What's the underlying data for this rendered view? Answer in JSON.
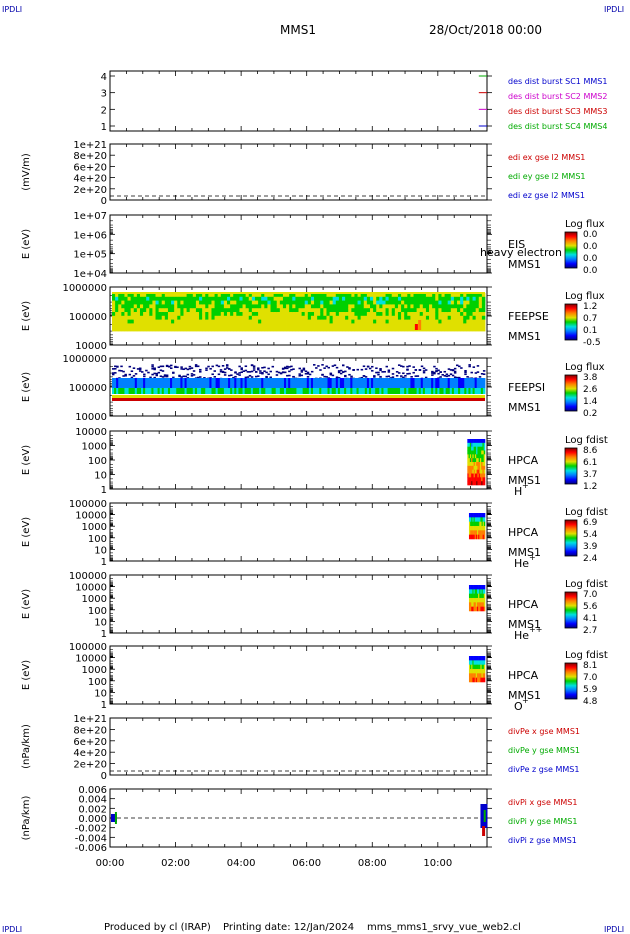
{
  "header": {
    "corner_tl": "IPDLI",
    "corner_tr": "IPDLI",
    "corner_bl": "IPDLI",
    "corner_br": "IPDLI",
    "title": "MMS1",
    "datetime": "28/Oct/2018 00:00"
  },
  "footer": {
    "produced_by": "Produced by cl (IRAP)",
    "printing_date": "Printing date: 12/Jan/2024",
    "filename": "mms_mms1_srvy_vue_web2.cl"
  },
  "colors": {
    "colorbar": [
      "#00007f",
      "#0000ff",
      "#0080ff",
      "#00e0e0",
      "#00d000",
      "#e0e000",
      "#ff8000",
      "#ff0000",
      "#7f0000"
    ]
  },
  "chart_data": {
    "type": "multi-panel-timeseries",
    "x_tick_labels": [
      "00:00",
      "02:00",
      "04:00",
      "06:00",
      "08:00",
      "10:00"
    ],
    "xlim_hours": [
      0,
      11.5
    ],
    "panels": [
      {
        "id": "burst",
        "type": "line",
        "y_tick_labels": [
          "4",
          "3",
          "2",
          "1"
        ],
        "ylim": [
          0.5,
          4.5
        ],
        "series": [
          {
            "name": "des dist burst SC1 MMS1",
            "color": "#0000cc",
            "y": 1,
            "start_hour": 11.25,
            "end_hour": 11.5
          },
          {
            "name": "des dist burst SC2 MMS2",
            "color": "#cc00cc",
            "y": 2,
            "start_hour": 11.25,
            "end_hour": 11.5
          },
          {
            "name": "des dist burst SC3 MMS3",
            "color": "#cc0000",
            "y": 3,
            "start_hour": 11.25,
            "end_hour": 11.5
          },
          {
            "name": "des dist burst SC4 MMS4",
            "color": "#00aa00",
            "y": 4,
            "start_hour": 11.25,
            "end_hour": 11.5
          }
        ]
      },
      {
        "id": "edi",
        "type": "line",
        "ylabel": "(mV/m)",
        "y_tick_labels": [
          "1e+21",
          "8e+20",
          "6e+20",
          "4e+20",
          "2e+20",
          "0"
        ],
        "ylim": [
          0,
          1e+21
        ],
        "zero_line": true,
        "series": [
          {
            "name": "edi ex gse l2 MMS1",
            "color": "#cc0000"
          },
          {
            "name": "edi ey gse l2 MMS1",
            "color": "#00aa00"
          },
          {
            "name": "edi ez gse l2 MMS1",
            "color": "#0000cc"
          }
        ]
      },
      {
        "id": "eis",
        "type": "heatmap",
        "ylabel": "E (eV)",
        "y_tick_labels": [
          "1e+07",
          "1e+06",
          "1e+05",
          "1e+04"
        ],
        "ylim": [
          10000.0,
          10000000.0
        ],
        "log_y": true,
        "instrument": "EIS",
        "spacecraft": "MMS1",
        "overlap_text": "heavy electron to",
        "colorbar_title": "Log flux",
        "colorbar_ticks": [
          "0.0",
          "0.0",
          "0.0",
          "0.0"
        ]
      },
      {
        "id": "feepse",
        "type": "heatmap",
        "ylabel": "E (eV)",
        "y_tick_labels": [
          "1000000",
          "100000",
          "10000"
        ],
        "ylim": [
          10000.0,
          1000000.0
        ],
        "log_y": true,
        "instrument": "FEEPSE",
        "spacecraft": "MMS1",
        "colorbar_title": "Log flux",
        "colorbar_ticks": [
          "1.2",
          "0.7",
          "0.1",
          "-0.5"
        ]
      },
      {
        "id": "feepsi",
        "type": "heatmap",
        "ylabel": "E (eV)",
        "y_tick_labels": [
          "1000000",
          "100000",
          "10000"
        ],
        "ylim": [
          10000.0,
          1000000.0
        ],
        "log_y": true,
        "instrument": "FEEPSI",
        "spacecraft": "MMS1",
        "colorbar_title": "Log flux",
        "colorbar_ticks": [
          "3.8",
          "2.6",
          "1.4",
          "0.2"
        ]
      },
      {
        "id": "hpca_h",
        "type": "heatmap",
        "ylabel": "E (eV)",
        "y_tick_labels": [
          "10000",
          "1000",
          "100",
          "10",
          "1"
        ],
        "ylim": [
          1,
          10000.0
        ],
        "log_y": true,
        "instrument": "HPCA",
        "spacecraft": "MMS1",
        "species": "H",
        "species_sup": "+",
        "colorbar_title": "Log fdist",
        "colorbar_ticks": [
          "8.6",
          "6.1",
          "3.7",
          "1.2"
        ],
        "data_start_hour": 10.9
      },
      {
        "id": "hpca_he",
        "type": "heatmap",
        "ylabel": "E (eV)",
        "y_tick_labels": [
          "100000",
          "10000",
          "1000",
          "100",
          "10",
          "1"
        ],
        "ylim": [
          1,
          100000.0
        ],
        "log_y": true,
        "instrument": "HPCA",
        "spacecraft": "MMS1",
        "species": "He",
        "species_sup": "+",
        "colorbar_title": "Log fdist",
        "colorbar_ticks": [
          "6.9",
          "5.4",
          "3.9",
          "2.4"
        ],
        "data_start_hour": 10.95
      },
      {
        "id": "hpca_hepp",
        "type": "heatmap",
        "ylabel": "E (eV)",
        "y_tick_labels": [
          "100000",
          "10000",
          "1000",
          "100",
          "10",
          "1"
        ],
        "ylim": [
          1,
          100000.0
        ],
        "log_y": true,
        "instrument": "HPCA",
        "spacecraft": "MMS1",
        "species": "He",
        "species_sup": "++",
        "colorbar_title": "Log fdist",
        "colorbar_ticks": [
          "7.0",
          "5.6",
          "4.1",
          "2.7"
        ],
        "data_start_hour": 10.95
      },
      {
        "id": "hpca_o",
        "type": "heatmap",
        "ylabel": "E (eV)",
        "y_tick_labels": [
          "100000",
          "10000",
          "1000",
          "100",
          "10",
          "1"
        ],
        "ylim": [
          1,
          100000.0
        ],
        "log_y": true,
        "instrument": "HPCA",
        "spacecraft": "MMS1",
        "species": "O",
        "species_sup": "+",
        "colorbar_title": "Log fdist",
        "colorbar_ticks": [
          "8.1",
          "7.0",
          "5.9",
          "4.8"
        ],
        "data_start_hour": 10.95
      },
      {
        "id": "divpe",
        "type": "line",
        "ylabel": "(nPa/km)",
        "y_tick_labels": [
          "1e+21",
          "8e+20",
          "6e+20",
          "4e+20",
          "2e+20",
          "0"
        ],
        "ylim": [
          0,
          1e+21
        ],
        "zero_line": true,
        "series": [
          {
            "name": "divPe x gse MMS1",
            "color": "#cc0000"
          },
          {
            "name": "divPe y gse MMS1",
            "color": "#00aa00"
          },
          {
            "name": "divPe z gse MMS1",
            "color": "#0000cc"
          }
        ]
      },
      {
        "id": "divpi",
        "type": "line",
        "ylabel": "(nPa/km)",
        "y_tick_labels": [
          "0.006",
          "0.004",
          "0.002",
          "0.000",
          "-0.002",
          "-0.004",
          "-0.006"
        ],
        "ylim": [
          -0.007,
          0.007
        ],
        "zero_line": true,
        "series": [
          {
            "name": "divPi x gse MMS1",
            "color": "#cc0000"
          },
          {
            "name": "divPi y gse MMS1",
            "color": "#00aa00"
          },
          {
            "name": "divPi z gse MMS1",
            "color": "#0000cc"
          }
        ]
      }
    ]
  }
}
